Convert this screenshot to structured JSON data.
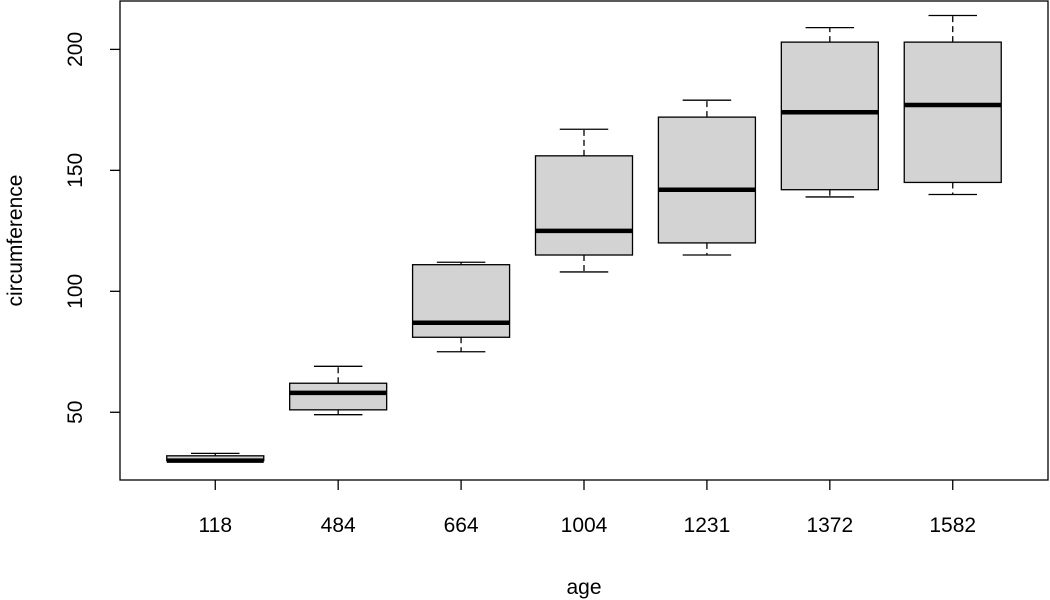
{
  "chart_data": {
    "type": "boxplot",
    "title": "",
    "xlabel": "age",
    "ylabel": "circumference",
    "ylim": [
      22,
      220
    ],
    "yticks": [
      50,
      100,
      150,
      200
    ],
    "grid": false,
    "box_fill": "#d3d3d3",
    "categories": [
      "118",
      "484",
      "664",
      "1004",
      "1231",
      "1372",
      "1582"
    ],
    "boxes": [
      {
        "category": "118",
        "whisker_low": 30,
        "q1": 30,
        "median": 30,
        "q3": 32,
        "whisker_high": 33
      },
      {
        "category": "484",
        "whisker_low": 49,
        "q1": 51,
        "median": 58,
        "q3": 62,
        "whisker_high": 69
      },
      {
        "category": "664",
        "whisker_low": 75,
        "q1": 81,
        "median": 87,
        "q3": 111,
        "whisker_high": 112
      },
      {
        "category": "1004",
        "whisker_low": 108,
        "q1": 115,
        "median": 125,
        "q3": 156,
        "whisker_high": 167
      },
      {
        "category": "1231",
        "whisker_low": 115,
        "q1": 120,
        "median": 142,
        "q3": 172,
        "whisker_high": 179
      },
      {
        "category": "1372",
        "whisker_low": 139,
        "q1": 142,
        "median": 174,
        "q3": 203,
        "whisker_high": 209
      },
      {
        "category": "1582",
        "whisker_low": 140,
        "q1": 145,
        "median": 177,
        "q3": 203,
        "whisker_high": 214
      }
    ]
  }
}
